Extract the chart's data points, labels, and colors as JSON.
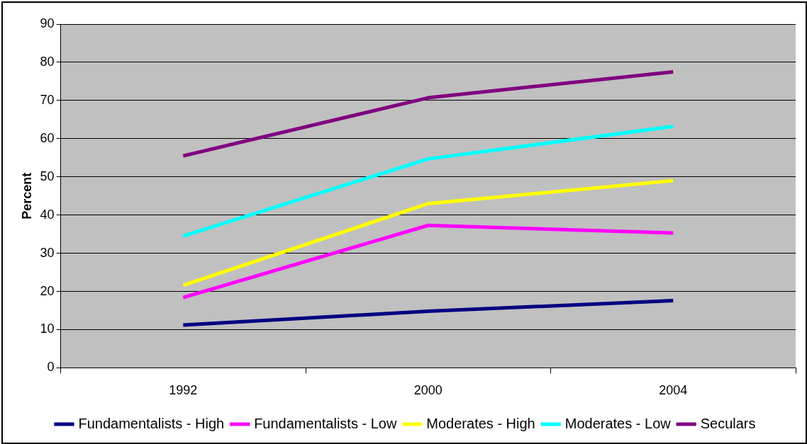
{
  "chart_data": {
    "type": "line",
    "ylabel": "Percent",
    "categories": [
      "1992",
      "2000",
      "2004"
    ],
    "series": [
      {
        "name": "Fundamentalists - High",
        "color": "#000080",
        "values": [
          11.2,
          14.8,
          17.6
        ]
      },
      {
        "name": "Fundamentalists - Low",
        "color": "#ff00ff",
        "values": [
          18.4,
          37.3,
          35.3
        ]
      },
      {
        "name": "Moderates - High",
        "color": "#ffff00",
        "values": [
          21.6,
          43,
          49
        ]
      },
      {
        "name": "Moderates - Low",
        "color": "#00ffff",
        "values": [
          34.5,
          54.7,
          63.2
        ]
      },
      {
        "name": "Seculars",
        "color": "#800080",
        "values": [
          55.5,
          70.7,
          77.5
        ]
      }
    ],
    "ylim": [
      0,
      90
    ],
    "yticks": [
      0,
      10,
      20,
      30,
      40,
      50,
      60,
      70,
      80,
      90
    ],
    "grid": "y",
    "legend": "bottom",
    "marker": "none",
    "line_style": "solid"
  }
}
